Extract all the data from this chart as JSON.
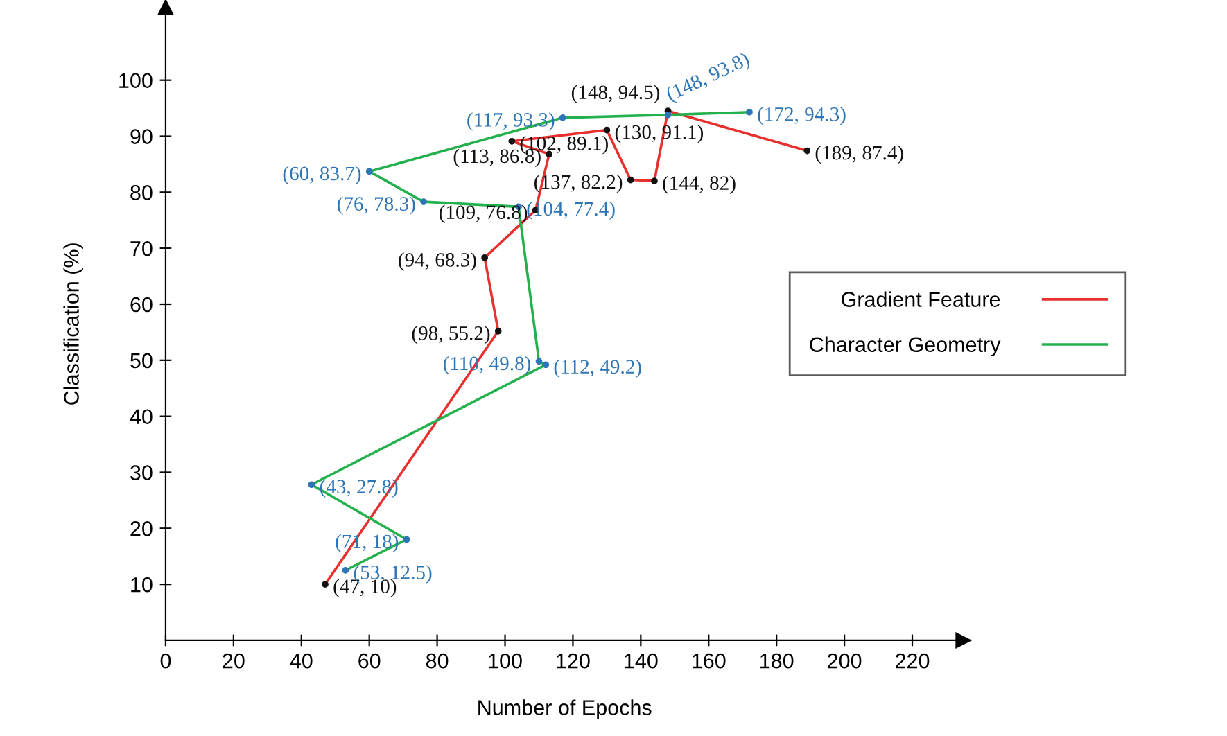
{
  "chart_data": {
    "type": "line",
    "xlabel": "Number of Epochs",
    "ylabel": "Classification (%)",
    "xlim": [
      0,
      235
    ],
    "ylim": [
      0,
      113
    ],
    "xticks": [
      0,
      20,
      40,
      60,
      80,
      100,
      120,
      140,
      160,
      180,
      200,
      220
    ],
    "yticks": [
      10,
      20,
      30,
      40,
      50,
      60,
      70,
      80,
      90,
      100
    ],
    "grid": false,
    "legend": "right",
    "marker": "circle",
    "line_style": "solid",
    "series": [
      {
        "name": "Gradient Feature",
        "color": "#e8312f",
        "x": [
          47,
          98,
          94,
          109,
          113,
          102,
          130,
          137,
          144,
          148,
          189
        ],
        "values": [
          10,
          55.2,
          68.3,
          76.8,
          86.8,
          89.1,
          91.1,
          82.2,
          82,
          94.5,
          87.4
        ],
        "value_labels": [
          "(47, 10)",
          "(98, 55.2)",
          "(94, 68.3)",
          "(109, 76.8)",
          "(113, 86.8)",
          "(102, 89.1)",
          "(130, 91.1)",
          "(137, 82.2)",
          "(144, 82)",
          "(148, 94.5)",
          "(189, 87.4)"
        ]
      },
      {
        "name": "Character Geometry",
        "color": "#22b14c",
        "x": [
          53,
          71,
          43,
          112,
          110,
          104,
          76,
          60,
          117,
          148,
          172
        ],
        "values": [
          12.5,
          18,
          27.8,
          49.2,
          49.8,
          77.4,
          78.3,
          83.7,
          93.3,
          93.8,
          94.3
        ],
        "value_labels": [
          "(53, 12.5)",
          "(71, 18)",
          "(43, 27.8)",
          "(112, 49.2)",
          "(110, 49.8)",
          "(104, 77.4)",
          "(76, 78.3)",
          "(60, 83.7)",
          "(117, 93.3)",
          "(148, 93.8)",
          "(172, 94.3)"
        ]
      }
    ]
  }
}
